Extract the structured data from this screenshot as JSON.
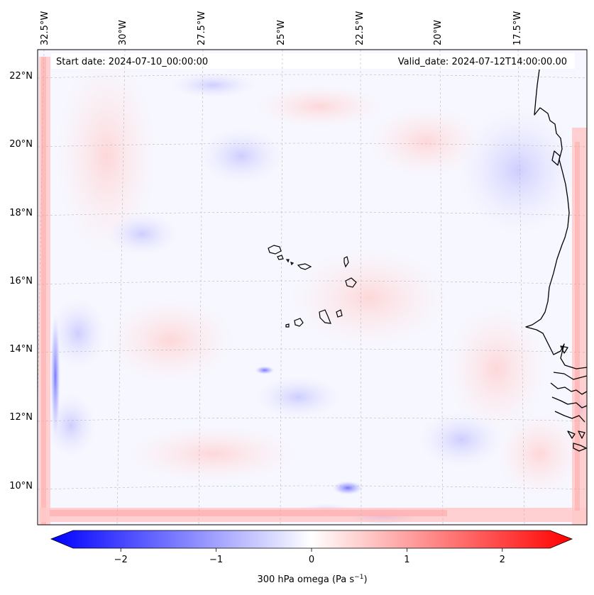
{
  "map": {
    "header_left": "Start date: 2024-07-10_00:00:00",
    "header_right": "Valid_date: 2024-07-12T14:00:00.00",
    "lon_labels": [
      "32.5°W",
      "30°W",
      "27.5°W",
      "25°W",
      "22.5°W",
      "20°W",
      "17.5°W"
    ],
    "lat_labels": [
      "22°N",
      "20°N",
      "18°N",
      "16°N",
      "14°N",
      "12°N",
      "10°N"
    ],
    "colors": {
      "negative": "#0000ff",
      "zero": "#ffffff",
      "positive": "#ff0000",
      "coast": "#000000"
    }
  },
  "colorbar": {
    "label": "300 hPa omega (Pa s",
    "label_sup": "−1",
    "label_close": ")",
    "range": [
      -2.7,
      2.7
    ],
    "ticks": [
      {
        "value": -2,
        "label": "−2"
      },
      {
        "value": -1,
        "label": "−1"
      },
      {
        "value": 0,
        "label": "0"
      },
      {
        "value": 1,
        "label": "1"
      },
      {
        "value": 2,
        "label": "2"
      }
    ]
  }
}
